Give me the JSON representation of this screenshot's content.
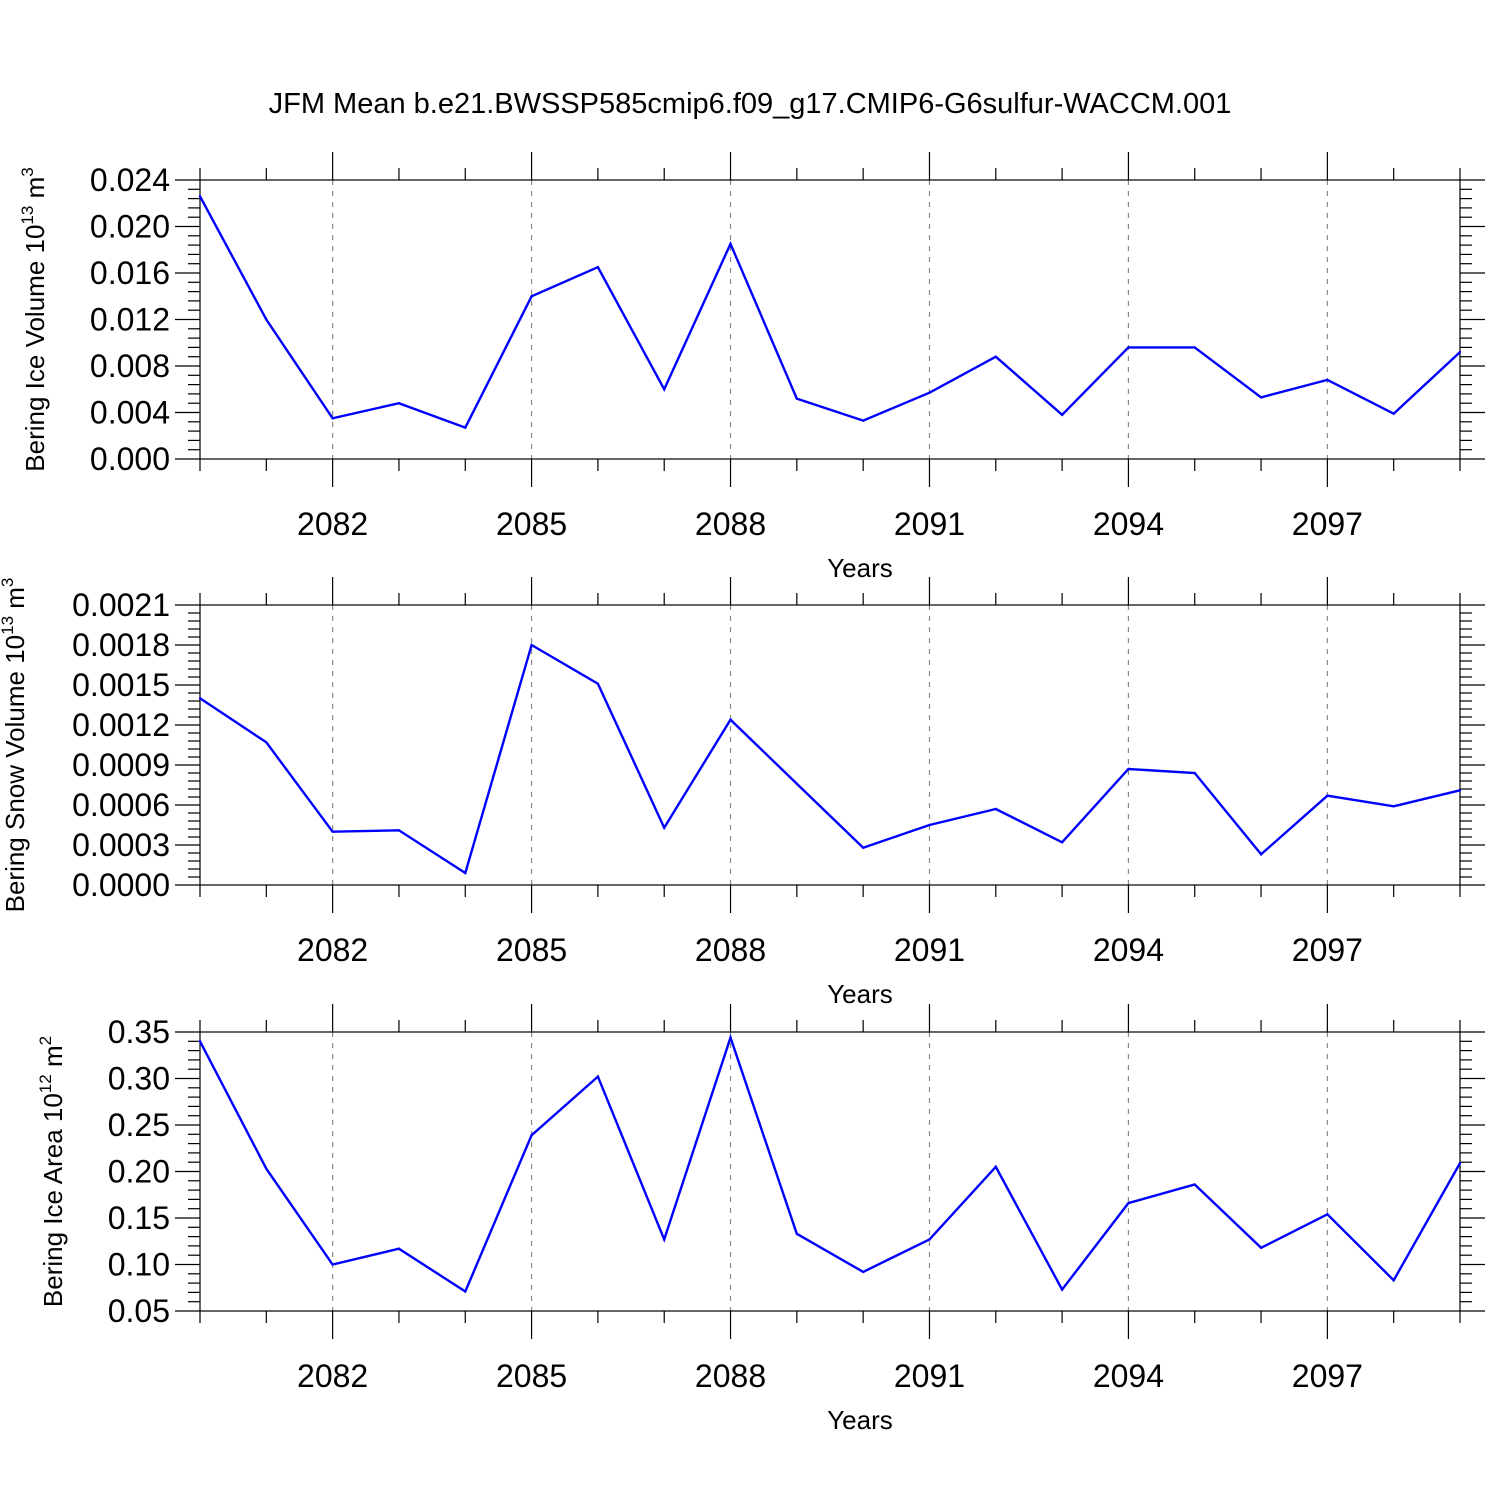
{
  "title": "JFM Mean b.e21.BWSSP585cmip6.f09_g17.CMIP6-G6sulfur-WACCM.001",
  "colors": {
    "series": "#0000ff",
    "grid": "#8a8a8a",
    "axes": "#000000"
  },
  "chart_data": [
    {
      "type": "line",
      "ylabel": "Bering Ice Volume 10",
      "ylabel_exp": "13",
      "ylabel_unit": " m",
      "ylabel_unit_exp": "3",
      "xlabel": "Years",
      "xlim": [
        2080,
        2099
      ],
      "ylim": [
        0.0,
        0.024
      ],
      "yticks": [
        "0.000",
        "0.004",
        "0.008",
        "0.012",
        "0.016",
        "0.020",
        "0.024"
      ],
      "xticks": [
        "2082",
        "2085",
        "2088",
        "2091",
        "2094",
        "2097"
      ],
      "grid": "x-dashed",
      "x": [
        2080,
        2081,
        2082,
        2083,
        2084,
        2085,
        2086,
        2087,
        2088,
        2089,
        2090,
        2091,
        2092,
        2093,
        2094,
        2095,
        2096,
        2097,
        2098,
        2099
      ],
      "values": [
        0.0226,
        0.012,
        0.0035,
        0.0048,
        0.0027,
        0.014,
        0.0165,
        0.006,
        0.0185,
        0.0052,
        0.0033,
        0.0057,
        0.0088,
        0.0038,
        0.0096,
        0.0096,
        0.0053,
        0.0068,
        0.0039,
        0.0092
      ]
    },
    {
      "type": "line",
      "ylabel": "Bering Snow Volume 10",
      "ylabel_exp": "13",
      "ylabel_unit": " m",
      "ylabel_unit_exp": "3",
      "xlabel": "Years",
      "xlim": [
        2080,
        2099
      ],
      "ylim": [
        0.0,
        0.0021
      ],
      "yticks": [
        "0.0000",
        "0.0003",
        "0.0006",
        "0.0009",
        "0.0012",
        "0.0015",
        "0.0018",
        "0.0021"
      ],
      "xticks": [
        "2082",
        "2085",
        "2088",
        "2091",
        "2094",
        "2097"
      ],
      "grid": "x-dashed",
      "x": [
        2080,
        2081,
        2082,
        2083,
        2084,
        2085,
        2086,
        2087,
        2088,
        2089,
        2090,
        2091,
        2092,
        2093,
        2094,
        2095,
        2096,
        2097,
        2098,
        2099
      ],
      "values": [
        0.0014,
        0.00107,
        0.0004,
        0.00041,
        9e-05,
        0.0018,
        0.00151,
        0.00043,
        0.00124,
        0.00076,
        0.00028,
        0.00045,
        0.00057,
        0.00032,
        0.00087,
        0.00084,
        0.00023,
        0.00067,
        0.00059,
        0.00071
      ]
    },
    {
      "type": "line",
      "ylabel": "Bering Ice Area 10",
      "ylabel_exp": "12",
      "ylabel_unit": " m",
      "ylabel_unit_exp": "2",
      "xlabel": "Years",
      "xlim": [
        2080,
        2099
      ],
      "ylim": [
        0.05,
        0.35
      ],
      "yticks": [
        "0.05",
        "0.10",
        "0.15",
        "0.20",
        "0.25",
        "0.30",
        "0.35"
      ],
      "xticks": [
        "2082",
        "2085",
        "2088",
        "2091",
        "2094",
        "2097"
      ],
      "grid": "x-dashed",
      "x": [
        2080,
        2081,
        2082,
        2083,
        2084,
        2085,
        2086,
        2087,
        2088,
        2089,
        2090,
        2091,
        2092,
        2093,
        2094,
        2095,
        2096,
        2097,
        2098,
        2099
      ],
      "values": [
        0.34,
        0.203,
        0.1,
        0.117,
        0.071,
        0.239,
        0.302,
        0.127,
        0.344,
        0.133,
        0.092,
        0.127,
        0.205,
        0.073,
        0.166,
        0.186,
        0.118,
        0.154,
        0.083,
        0.209
      ]
    }
  ]
}
